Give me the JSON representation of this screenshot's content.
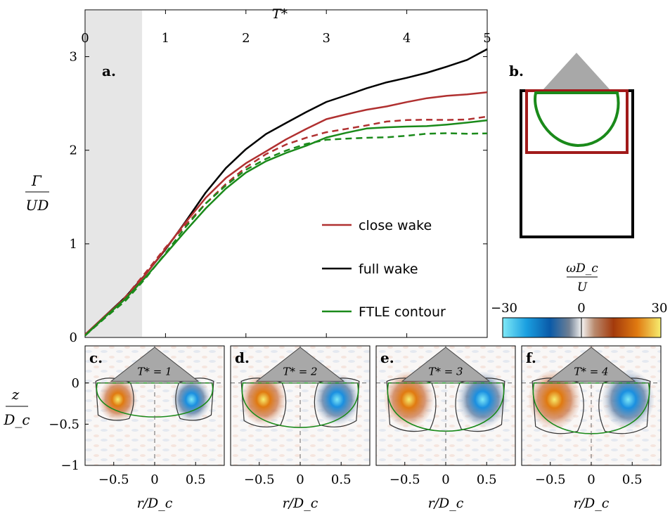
{
  "chart_data": [
    {
      "type": "line",
      "panel": "a.",
      "top_xlabel": "T*",
      "ylabel_num": "Γ",
      "ylabel_den": "UD",
      "xlim": [
        0,
        5
      ],
      "ylim": [
        0,
        3.5
      ],
      "x_ticks": [
        "0",
        "1",
        "2",
        "3",
        "4",
        "5"
      ],
      "y_ticks": [
        "0",
        "1",
        "2",
        "3"
      ],
      "shaded_region": [
        0,
        0.7
      ],
      "legend": [
        {
          "label": "close wake",
          "color": "#b03030"
        },
        {
          "label": "full wake",
          "color": "#000000"
        },
        {
          "label": "FTLE contour",
          "color": "#1a8a1a"
        }
      ],
      "x": [
        0,
        0.25,
        0.5,
        0.75,
        1.0,
        1.25,
        1.5,
        1.75,
        2.0,
        2.25,
        2.5,
        2.75,
        3.0,
        3.25,
        3.5,
        3.75,
        4.0,
        4.25,
        4.5,
        4.75,
        5.0
      ],
      "series": [
        {
          "name": "full wake",
          "style": "solid",
          "color": "#000000",
          "values": [
            0.03,
            0.22,
            0.42,
            0.67,
            0.95,
            1.25,
            1.55,
            1.8,
            2.0,
            2.17,
            2.3,
            2.42,
            2.52,
            2.58,
            2.65,
            2.72,
            2.78,
            2.84,
            2.9,
            2.96,
            3.08
          ]
        },
        {
          "name": "close wake",
          "style": "solid",
          "color": "#b03030",
          "values": [
            0.03,
            0.23,
            0.43,
            0.68,
            0.95,
            1.22,
            1.48,
            1.7,
            1.87,
            2.0,
            2.12,
            2.22,
            2.32,
            2.38,
            2.44,
            2.48,
            2.52,
            2.55,
            2.57,
            2.59,
            2.62
          ]
        },
        {
          "name": "close wake (dashed)",
          "style": "dashed",
          "color": "#b03030",
          "values": [
            0.03,
            0.23,
            0.43,
            0.68,
            0.95,
            1.2,
            1.44,
            1.65,
            1.82,
            1.95,
            2.05,
            2.13,
            2.2,
            2.24,
            2.27,
            2.3,
            2.31,
            2.32,
            2.33,
            2.34,
            2.36
          ]
        },
        {
          "name": "FTLE contour",
          "style": "solid",
          "color": "#1a8a1a",
          "values": [
            0.02,
            0.21,
            0.4,
            0.64,
            0.9,
            1.15,
            1.38,
            1.58,
            1.75,
            1.88,
            1.98,
            2.06,
            2.14,
            2.18,
            2.22,
            2.24,
            2.26,
            2.27,
            2.28,
            2.29,
            2.32
          ]
        },
        {
          "name": "FTLE contour (dashed)",
          "style": "dashed",
          "color": "#1a8a1a",
          "values": [
            0.02,
            0.21,
            0.4,
            0.64,
            0.9,
            1.17,
            1.42,
            1.62,
            1.8,
            1.92,
            2.0,
            2.06,
            2.1,
            2.12,
            2.14,
            2.15,
            2.16,
            2.17,
            2.17,
            2.17,
            2.18
          ]
        }
      ]
    },
    {
      "type": "heatmap",
      "panels": [
        {
          "letter": "c.",
          "label": "T* = 1"
        },
        {
          "letter": "d.",
          "label": "T* = 2"
        },
        {
          "letter": "e.",
          "label": "T* = 3"
        },
        {
          "letter": "f.",
          "label": "T* = 4"
        }
      ],
      "x_ticks": [
        "−0.5",
        "0",
        "0.5"
      ],
      "y_ticks": [
        "0",
        "−0.5",
        "−1"
      ],
      "xlabel": "r/D_c",
      "ylabel_num": "z",
      "ylabel_den": "D_c",
      "colorbar": {
        "title_num": "ωD_c",
        "title_den": "U",
        "ticks": [
          "−30",
          "0",
          "30"
        ],
        "range": [
          -30,
          30
        ]
      }
    }
  ],
  "panel_b": {
    "letter": "b."
  }
}
